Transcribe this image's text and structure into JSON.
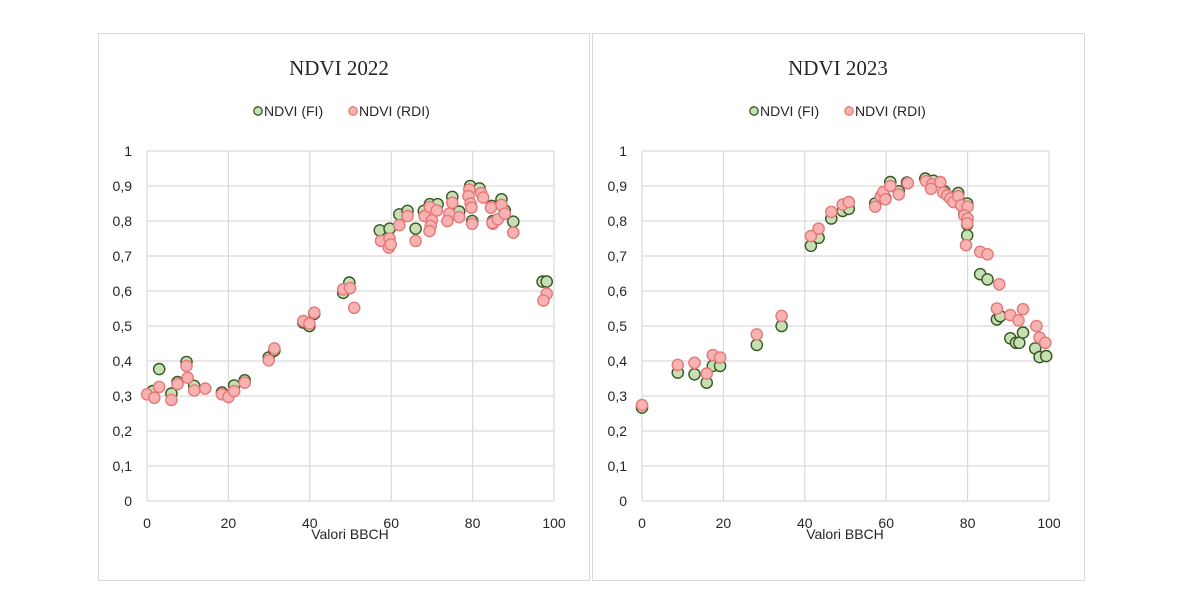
{
  "colors": {
    "fi_fill": "#c6e0b4",
    "fi_stroke": "#375623",
    "rdi_fill": "#f6b3b1",
    "rdi_stroke": "#e4797a",
    "grid": "#d9d9d9",
    "text": "#262626"
  },
  "chart_data": [
    {
      "type": "scatter",
      "title": "NDVI 2022",
      "xlabel": "Valori BBCH",
      "ylabel": "",
      "xlim": [
        0,
        100
      ],
      "ylim": [
        0,
        1
      ],
      "grid": true,
      "legend_position": "top",
      "x_ticks": [
        "0",
        "20",
        "40",
        "60",
        "80",
        "100"
      ],
      "y_ticks": [
        "0",
        "0,1",
        "0,2",
        "0,3",
        "0,4",
        "0,5",
        "0,6",
        "0,7",
        "0,8",
        "0,9",
        "1"
      ],
      "series": [
        {
          "name": "NDVI (FI)",
          "points": [
            [
              1.4,
              0.314
            ],
            [
              3,
              0.377
            ],
            [
              6,
              0.307
            ],
            [
              7.5,
              0.34
            ],
            [
              9.7,
              0.397
            ],
            [
              11.6,
              0.329
            ],
            [
              18.4,
              0.31
            ],
            [
              21.4,
              0.33
            ],
            [
              24,
              0.345
            ],
            [
              29.9,
              0.41
            ],
            [
              31.3,
              0.43
            ],
            [
              38.4,
              0.51
            ],
            [
              39.9,
              0.5
            ],
            [
              41.1,
              0.535
            ],
            [
              48.2,
              0.595
            ],
            [
              49.7,
              0.624
            ],
            [
              57.2,
              0.773
            ],
            [
              59.6,
              0.778
            ],
            [
              62,
              0.819
            ],
            [
              64,
              0.829
            ],
            [
              66,
              0.778
            ],
            [
              68,
              0.829
            ],
            [
              69.5,
              0.848
            ],
            [
              71.4,
              0.848
            ],
            [
              75,
              0.869
            ],
            [
              76.7,
              0.827
            ],
            [
              79.4,
              0.9
            ],
            [
              79.9,
              0.8
            ],
            [
              81.7,
              0.893
            ],
            [
              84.7,
              0.843
            ],
            [
              85,
              0.8
            ],
            [
              87.1,
              0.862
            ],
            [
              87.9,
              0.83
            ],
            [
              90,
              0.798
            ],
            [
              97.2,
              0.627
            ],
            [
              98.2,
              0.627
            ]
          ]
        },
        {
          "name": "NDVI (RDI)",
          "points": [
            [
              0,
              0.305
            ],
            [
              1.8,
              0.295
            ],
            [
              3,
              0.326
            ],
            [
              6,
              0.289
            ],
            [
              7.5,
              0.334
            ],
            [
              9.7,
              0.386
            ],
            [
              10,
              0.352
            ],
            [
              11.6,
              0.316
            ],
            [
              14.3,
              0.321
            ],
            [
              18.4,
              0.305
            ],
            [
              20,
              0.297
            ],
            [
              21.4,
              0.314
            ],
            [
              24,
              0.338
            ],
            [
              29.9,
              0.402
            ],
            [
              31.3,
              0.436
            ],
            [
              38.4,
              0.514
            ],
            [
              39.9,
              0.507
            ],
            [
              41.1,
              0.538
            ],
            [
              48.2,
              0.605
            ],
            [
              49.9,
              0.608
            ],
            [
              50.9,
              0.552
            ],
            [
              57.5,
              0.743
            ],
            [
              59.6,
              0.75
            ],
            [
              59.4,
              0.724
            ],
            [
              59.9,
              0.733
            ],
            [
              62,
              0.788
            ],
            [
              64,
              0.814
            ],
            [
              66,
              0.743
            ],
            [
              68.2,
              0.814
            ],
            [
              69.5,
              0.84
            ],
            [
              71.2,
              0.83
            ],
            [
              70,
              0.802
            ],
            [
              69.7,
              0.786
            ],
            [
              69.4,
              0.771
            ],
            [
              75,
              0.852
            ],
            [
              74.3,
              0.821
            ],
            [
              73.8,
              0.8
            ],
            [
              76.7,
              0.811
            ],
            [
              79.2,
              0.89
            ],
            [
              79,
              0.871
            ],
            [
              79.5,
              0.85
            ],
            [
              79.7,
              0.838
            ],
            [
              79.9,
              0.792
            ],
            [
              82.1,
              0.88
            ],
            [
              82.6,
              0.867
            ],
            [
              84.5,
              0.838
            ],
            [
              85,
              0.792
            ],
            [
              84.9,
              0.795
            ],
            [
              86.2,
              0.805
            ],
            [
              87.1,
              0.846
            ],
            [
              87.9,
              0.821
            ],
            [
              90,
              0.767
            ],
            [
              98.2,
              0.592
            ],
            [
              97.4,
              0.573
            ]
          ]
        }
      ]
    },
    {
      "type": "scatter",
      "title": "NDVI 2023",
      "xlabel": "Valori BBCH",
      "ylabel": "",
      "xlim": [
        0,
        100
      ],
      "ylim": [
        0,
        1
      ],
      "grid": true,
      "legend_position": "top",
      "x_ticks": [
        "0",
        "20",
        "40",
        "60",
        "80",
        "100"
      ],
      "y_ticks": [
        "0",
        "0,1",
        "0,2",
        "0,3",
        "0,4",
        "0,5",
        "0,6",
        "0,7",
        "0,8",
        "0,9",
        "1"
      ],
      "series": [
        {
          "name": "NDVI (FI)",
          "points": [
            [
              0,
              0.267
            ],
            [
              8.8,
              0.367
            ],
            [
              12.9,
              0.362
            ],
            [
              15.9,
              0.338
            ],
            [
              17.4,
              0.386
            ],
            [
              19.2,
              0.386
            ],
            [
              28.2,
              0.446
            ],
            [
              34.3,
              0.5
            ],
            [
              41.5,
              0.729
            ],
            [
              43.4,
              0.752
            ],
            [
              46.5,
              0.807
            ],
            [
              49.3,
              0.829
            ],
            [
              50.8,
              0.835
            ],
            [
              57.3,
              0.85
            ],
            [
              59.8,
              0.865
            ],
            [
              61,
              0.911
            ],
            [
              63.1,
              0.885
            ],
            [
              65.1,
              0.91
            ],
            [
              69.6,
              0.921
            ],
            [
              71.6,
              0.915
            ],
            [
              74.3,
              0.885
            ],
            [
              77.7,
              0.88
            ],
            [
              79.9,
              0.85
            ],
            [
              79.2,
              0.82
            ],
            [
              79.9,
              0.79
            ],
            [
              79.9,
              0.759
            ],
            [
              83.1,
              0.648
            ],
            [
              84.9,
              0.633
            ],
            [
              87.2,
              0.519
            ],
            [
              88,
              0.528
            ],
            [
              90.5,
              0.465
            ],
            [
              91.9,
              0.452
            ],
            [
              92.7,
              0.452
            ],
            [
              93.6,
              0.481
            ],
            [
              96.6,
              0.436
            ],
            [
              97.7,
              0.411
            ],
            [
              99.3,
              0.414
            ]
          ]
        },
        {
          "name": "NDVI (RDI)",
          "points": [
            [
              0,
              0.274
            ],
            [
              8.8,
              0.389
            ],
            [
              12.9,
              0.395
            ],
            [
              15.9,
              0.364
            ],
            [
              17.4,
              0.417
            ],
            [
              19.2,
              0.41
            ],
            [
              28.2,
              0.476
            ],
            [
              34.3,
              0.529
            ],
            [
              41.5,
              0.757
            ],
            [
              43.4,
              0.778
            ],
            [
              46.5,
              0.826
            ],
            [
              49.3,
              0.847
            ],
            [
              50.8,
              0.854
            ],
            [
              57.3,
              0.841
            ],
            [
              58.7,
              0.871
            ],
            [
              59.3,
              0.883
            ],
            [
              59.8,
              0.862
            ],
            [
              61,
              0.9
            ],
            [
              63.1,
              0.876
            ],
            [
              65.3,
              0.908
            ],
            [
              69.8,
              0.914
            ],
            [
              71.3,
              0.905
            ],
            [
              71,
              0.892
            ],
            [
              73.3,
              0.911
            ],
            [
              74,
              0.881
            ],
            [
              75,
              0.873
            ],
            [
              75.8,
              0.864
            ],
            [
              76.5,
              0.854
            ],
            [
              77.7,
              0.871
            ],
            [
              78.4,
              0.845
            ],
            [
              80,
              0.841
            ],
            [
              79.2,
              0.816
            ],
            [
              80,
              0.807
            ],
            [
              79.9,
              0.793
            ],
            [
              79.6,
              0.731
            ],
            [
              83.1,
              0.712
            ],
            [
              84.9,
              0.705
            ],
            [
              87.8,
              0.619
            ],
            [
              87.2,
              0.55
            ],
            [
              90.5,
              0.531
            ],
            [
              92.5,
              0.516
            ],
            [
              93.6,
              0.548
            ],
            [
              96.9,
              0.5
            ],
            [
              97.7,
              0.467
            ],
            [
              99.1,
              0.452
            ]
          ]
        }
      ]
    }
  ]
}
